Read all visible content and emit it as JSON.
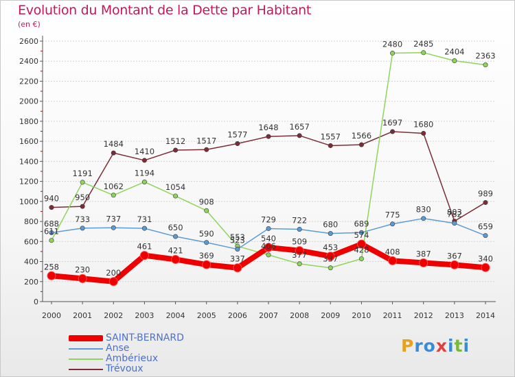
{
  "header": {
    "title": "Evolution du Montant de la Dette par Habitant",
    "subtitle": "(en €)"
  },
  "brand": {
    "letters": [
      "P",
      "r",
      "o",
      "x",
      "i",
      "t",
      "i"
    ],
    "colors": [
      "#e8a020",
      "#3a8bd6",
      "#3a8bd6",
      "#e04040",
      "#3a8bd6",
      "#7ab840",
      "#3a8bd6"
    ]
  },
  "chart_data": {
    "type": "line",
    "title": "Evolution du Montant de la Dette par Habitant",
    "subtitle": "(en €)",
    "x": [
      "2000",
      "2001",
      "2002",
      "2003",
      "2004",
      "2005",
      "2006",
      "2007",
      "2008",
      "2009",
      "2010",
      "2011",
      "2012",
      "2013",
      "2014"
    ],
    "ylim": [
      0,
      2600
    ],
    "yticks": [
      0,
      200,
      400,
      600,
      800,
      1000,
      1200,
      1400,
      1600,
      1800,
      2000,
      2200,
      2400,
      2600
    ],
    "grid": true,
    "legend_position": "bottom-left",
    "series": [
      {
        "name": "SAINT-BERNARD",
        "color": "#ee0000",
        "values": [
          258,
          230,
          200,
          461,
          421,
          369,
          337,
          540,
          509,
          453,
          574,
          408,
          387,
          367,
          340
        ],
        "labels": [
          "258",
          "230",
          "200",
          "461",
          "421",
          "369",
          "337",
          "540",
          "509",
          "453",
          "574",
          "408",
          "387",
          "367",
          "340"
        ]
      },
      {
        "name": "Anse",
        "color": "#5b9bd5",
        "values": [
          688,
          733,
          737,
          731,
          650,
          590,
          523,
          729,
          722,
          680,
          689,
          775,
          830,
          782,
          659
        ],
        "labels": [
          "688",
          "733",
          "737",
          "731",
          "650",
          "590",
          "523",
          "729",
          "722",
          "680",
          "689",
          "775",
          "830",
          "782",
          "659"
        ]
      },
      {
        "name": "Ambérieux",
        "color": "#8dd55a",
        "values": [
          611,
          1191,
          1062,
          1194,
          1054,
          908,
          553,
          466,
          377,
          337,
          428,
          2480,
          2485,
          2404,
          2363
        ],
        "labels": [
          "611",
          "1191",
          "1062",
          "1194",
          "1054",
          "908",
          "553",
          "466",
          "377",
          "337",
          "428",
          "2480",
          "2485",
          "2404",
          "2363"
        ]
      },
      {
        "name": "Trévoux",
        "color": "#7b2c36",
        "values": [
          940,
          950,
          1484,
          1410,
          1512,
          1517,
          1577,
          1648,
          1657,
          1557,
          1566,
          1697,
          1680,
          803,
          989
        ],
        "labels": [
          "940",
          "950",
          "1484",
          "1410",
          "1512",
          "1517",
          "1577",
          "1648",
          "1657",
          "1557",
          "1566",
          "1697",
          "1680",
          "803",
          "989"
        ]
      }
    ]
  }
}
